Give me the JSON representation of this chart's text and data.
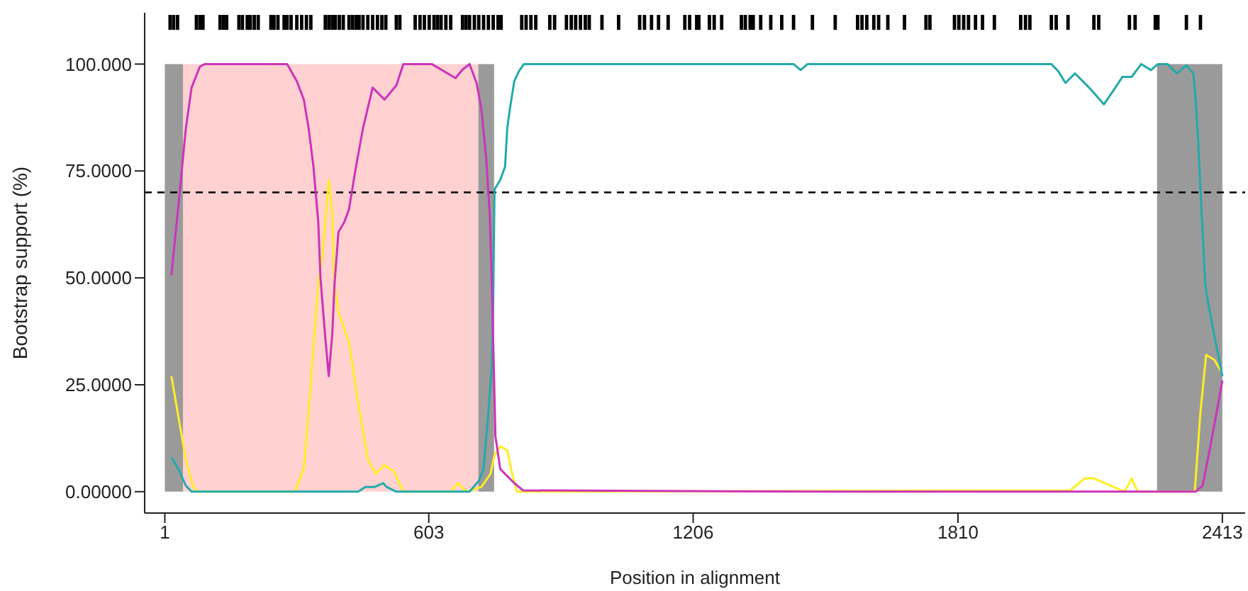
{
  "chart_data": {
    "type": "line",
    "xlabel": "Position in alignment",
    "ylabel": "Bootstrap support (%)",
    "xlim": [
      -45,
      2465
    ],
    "xticks": [
      1,
      603,
      1206,
      1810,
      2413
    ],
    "ylim": [
      -5,
      112
    ],
    "yticks": [
      {
        "value": 0,
        "label": "0.00000"
      },
      {
        "value": 25,
        "label": "25.0000"
      },
      {
        "value": 50,
        "label": "50.0000"
      },
      {
        "value": 75,
        "label": "75.0000"
      },
      {
        "value": 100,
        "label": "100.000"
      }
    ],
    "ref_lines": [
      {
        "axis": "y",
        "value": 70,
        "color": "#000000",
        "line_style": "dashed"
      }
    ],
    "bands": [
      {
        "axis": "x",
        "from": 1,
        "to": 43,
        "color": "#9a9a9a"
      },
      {
        "axis": "x",
        "from": 43,
        "to": 716,
        "color": "#ffd1d1"
      },
      {
        "axis": "x",
        "from": 716,
        "to": 752,
        "color": "#9a9a9a"
      },
      {
        "axis": "x",
        "from": 2264,
        "to": 2413,
        "color": "#9a9a9a"
      }
    ],
    "series": [
      {
        "color": "#ffee22",
        "x": [
          16,
          32,
          49,
          65,
          75,
          297,
          318,
          329,
          340,
          351,
          361,
          375,
          383,
          388,
          397,
          421,
          442,
          464,
          482,
          502,
          523,
          545,
          653,
          669,
          690,
          723,
          744,
          753,
          766,
          782,
          793,
          804,
          2066,
          2099,
          2120,
          2174,
          2190,
          2206,
          2220,
          2350,
          2363,
          2376,
          2395,
          2411
        ],
        "values": [
          27,
          17.5,
          7.5,
          1.4,
          0,
          0,
          5.3,
          18.6,
          34,
          48.5,
          56,
          72.9,
          65,
          48.5,
          42,
          35,
          20.8,
          7.5,
          4.2,
          6.2,
          4.8,
          0,
          0,
          2,
          0,
          1.1,
          4.2,
          8.6,
          10.6,
          9.7,
          4.2,
          0,
          0.3,
          3.1,
          3.1,
          0.7,
          0,
          3.1,
          0,
          0,
          18.6,
          32,
          30.8,
          28
        ]
      },
      {
        "color": "#22aaaa",
        "x": [
          16,
          32,
          49,
          62,
          442,
          458,
          480,
          499,
          507,
          529,
          696,
          717,
          728,
          739,
          747,
          750,
          753,
          766,
          777,
          782,
          788,
          798,
          809,
          820,
          1435,
          1451,
          1467,
          2023,
          2039,
          2055,
          2077,
          2109,
          2143,
          2169,
          2185,
          2206,
          2228,
          2250,
          2266,
          2288,
          2309,
          2331,
          2347,
          2352,
          2358,
          2363,
          2368,
          2374,
          2379,
          2395,
          2413
        ],
        "values": [
          8,
          5.3,
          1.4,
          0,
          0,
          1.1,
          1.1,
          2,
          1.1,
          0,
          0,
          2.5,
          5.3,
          18.6,
          29.7,
          45,
          70.7,
          72.9,
          76,
          85,
          89.5,
          96,
          98.4,
          100,
          100,
          98.6,
          100,
          100,
          98.3,
          95.6,
          97.8,
          94.5,
          90.6,
          94.5,
          97,
          97,
          100,
          98.6,
          100,
          100,
          97.8,
          99.7,
          97.8,
          91.7,
          81.7,
          70.7,
          60.7,
          48.5,
          45,
          36.3,
          27
        ]
      },
      {
        "color": "#cc33bb",
        "x": [
          16,
          32,
          49,
          62,
          81,
          92,
          280,
          302,
          318,
          329,
          340,
          351,
          356,
          367,
          375,
          383,
          388,
          397,
          410,
          421,
          437,
          453,
          475,
          502,
          529,
          545,
          610,
          664,
          680,
          696,
          712,
          723,
          734,
          742,
          747,
          750,
          755,
          766,
          798,
          818,
          1500,
          2352,
          2368,
          2384,
          2400,
          2413
        ],
        "values": [
          50.6,
          67,
          85,
          94.5,
          99.4,
          100,
          100,
          96,
          91.7,
          85,
          76,
          63,
          50,
          36,
          27,
          37,
          48.5,
          60.7,
          63,
          66,
          76,
          85,
          94.5,
          91.7,
          95,
          100,
          100,
          96.7,
          98.7,
          100,
          95.6,
          89.5,
          78,
          65,
          48.5,
          35,
          13,
          5.3,
          2,
          0.3,
          0,
          0,
          1.4,
          9.7,
          18.6,
          26
        ]
      },
      {
        "type": "bar",
        "color": "#000000",
        "base": [
          108,
          108,
          108,
          108,
          108,
          108,
          108,
          108,
          108,
          108,
          108,
          108,
          108,
          108,
          108,
          108,
          108,
          108,
          108,
          108,
          108,
          108,
          108,
          108,
          108,
          108,
          108,
          108,
          108,
          108,
          108,
          108,
          108,
          108,
          108,
          108,
          108,
          108,
          108,
          108,
          108,
          108,
          108,
          108,
          108,
          108,
          108,
          108,
          108,
          108,
          108,
          108,
          108,
          108,
          108,
          108,
          108,
          108,
          108,
          108,
          108,
          108,
          108,
          108,
          108,
          108,
          108,
          108,
          108,
          108,
          108,
          108,
          108,
          108,
          108,
          108,
          108,
          108,
          108,
          108,
          108,
          108,
          108,
          108,
          108,
          108,
          108,
          108,
          108,
          108,
          108,
          108,
          108,
          108,
          108,
          108,
          108,
          108,
          108,
          108,
          108,
          108,
          108,
          108,
          108,
          108,
          108,
          108,
          108,
          108,
          108,
          108,
          108,
          108,
          108,
          108,
          108,
          108,
          108,
          108,
          108,
          108,
          108,
          108,
          108,
          108,
          108,
          108
        ],
        "x": [
          13,
          21,
          30,
          73,
          81,
          88,
          127,
          135,
          142,
          170,
          178,
          189,
          196,
          205,
          214,
          243,
          250,
          259,
          273,
          280,
          289,
          302,
          313,
          324,
          334,
          367,
          375,
          383,
          390,
          399,
          408,
          421,
          429,
          437,
          444,
          453,
          464,
          475,
          486,
          496,
          505,
          529,
          537,
          572,
          583,
          593,
          604,
          615,
          623,
          631,
          642,
          653,
          680,
          688,
          696,
          707,
          717,
          728,
          739,
          750,
          761,
          768,
          815,
          825,
          836,
          847,
          879,
          890,
          917,
          928,
          938,
          949,
          960,
          969,
          998,
          1036,
          1084,
          1095,
          1111,
          1127,
          1149,
          1187,
          1198,
          1214,
          1219,
          1243,
          1254,
          1271,
          1316,
          1325,
          1336,
          1343,
          1360,
          1383,
          1408,
          1435,
          1478,
          1530,
          1581,
          1591,
          1602,
          1618,
          1629,
          1650,
          1688,
          1737,
          1746,
          1802,
          1812,
          1823,
          1834,
          1850,
          1866,
          1893,
          1953,
          1964,
          1974,
          2023,
          2034,
          2061,
          2120,
          2131,
          2201,
          2214,
          2260,
          2266,
          2331,
          2363
        ],
        "values": [
          3.5,
          3.5,
          3.5,
          3.5,
          3.5,
          3.5,
          3.5,
          3.5,
          3.5,
          3.5,
          3.5,
          3.5,
          3.5,
          3.5,
          3.5,
          3.5,
          3.5,
          3.5,
          3.5,
          3.5,
          3.5,
          3.5,
          3.5,
          3.5,
          3.5,
          3.5,
          3.5,
          3.5,
          3.5,
          3.5,
          3.5,
          3.5,
          3.5,
          3.5,
          3.5,
          3.5,
          3.5,
          3.5,
          3.5,
          3.5,
          3.5,
          3.5,
          3.5,
          3.5,
          3.5,
          3.5,
          3.5,
          3.5,
          3.5,
          3.5,
          3.5,
          3.5,
          3.5,
          3.5,
          3.5,
          3.5,
          3.5,
          3.5,
          3.5,
          3.5,
          3.5,
          3.5,
          3.5,
          3.5,
          3.5,
          3.5,
          3.5,
          3.5,
          3.5,
          3.5,
          3.5,
          3.5,
          3.5,
          3.5,
          3.5,
          3.5,
          3.5,
          3.5,
          3.5,
          3.5,
          3.5,
          3.5,
          3.5,
          3.5,
          3.5,
          3.5,
          3.5,
          3.5,
          3.5,
          3.5,
          3.5,
          3.5,
          3.5,
          3.5,
          3.5,
          3.5,
          3.5,
          3.5,
          3.5,
          3.5,
          3.5,
          3.5,
          3.5,
          3.5,
          3.5,
          3.5,
          3.5,
          3.5,
          3.5,
          3.5,
          3.5,
          3.5,
          3.5,
          3.5,
          3.5,
          3.5,
          3.5,
          3.5,
          3.5,
          3.5,
          3.5,
          3.5,
          3.5,
          3.5,
          3.5,
          3.5,
          3.5,
          3.5
        ]
      }
    ]
  }
}
